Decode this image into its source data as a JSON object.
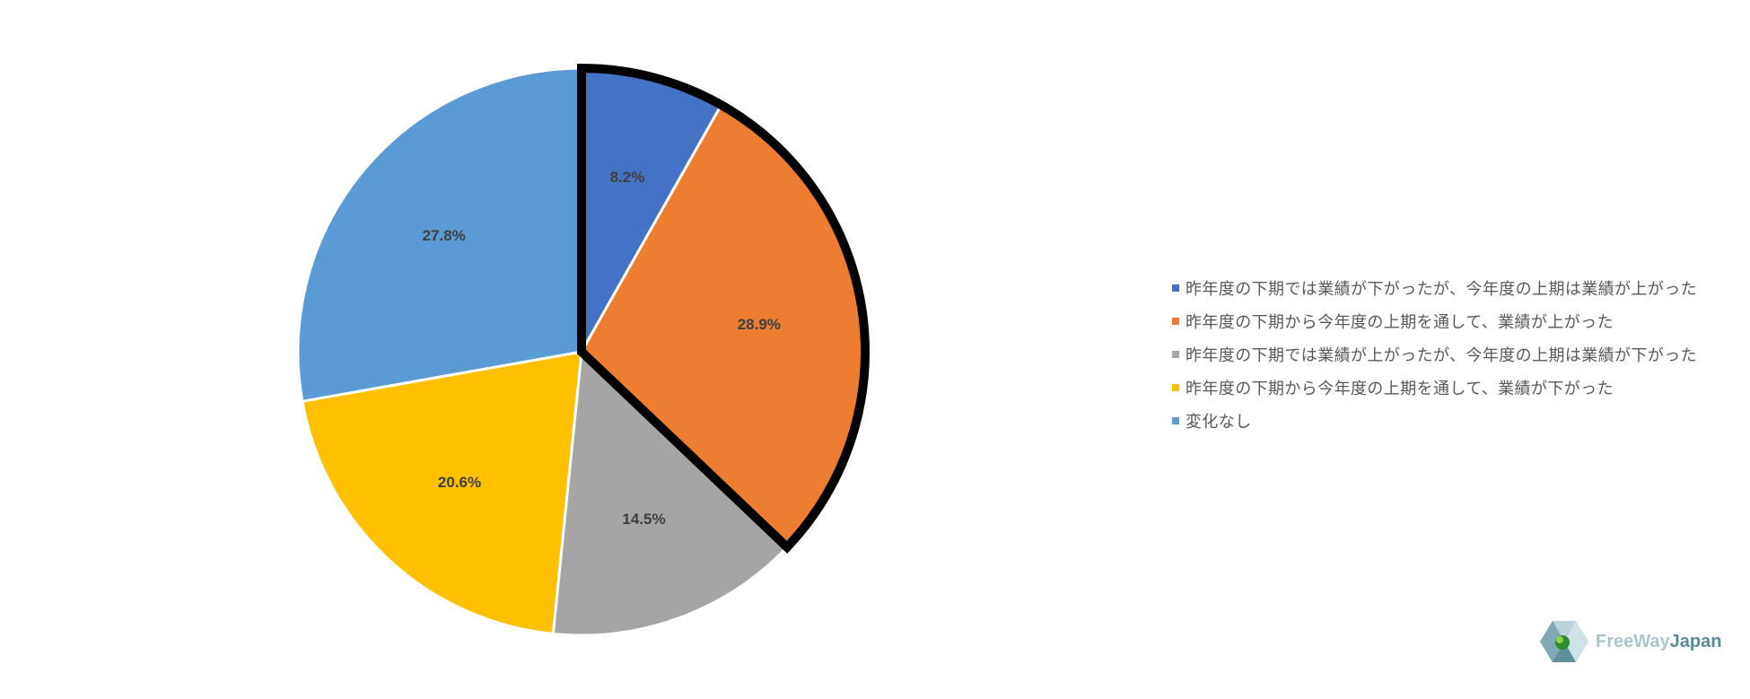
{
  "chart_data": {
    "type": "pie",
    "title": "",
    "categories": [
      "昨年度の下期では業績が下がったが、今年度の上期は業績が上がった",
      "昨年度の下期から今年度の上期を通して、業績が上がった",
      "昨年度の下期では業績が上がったが、今年度の上期は業績が下がった",
      "昨年度の下期から今年度の上期を通して、業績が下がった",
      "変化なし"
    ],
    "values": [
      8.2,
      28.9,
      14.5,
      20.6,
      27.8
    ],
    "labels": [
      "8.2%",
      "28.9%",
      "14.5%",
      "20.6%",
      "27.8%"
    ],
    "colors": [
      "#4472c4",
      "#ed7d31",
      "#a5a5a5",
      "#ffc000",
      "#5b9bd5"
    ],
    "highlighted": [
      0,
      1
    ],
    "highlight_color": "#000000",
    "start_angle_deg": 0,
    "direction": "clockwise",
    "legend_position": "right"
  },
  "logo": {
    "free": "FreeWay",
    "japan": "Japan",
    "icon": "freewayjapan-logo-icon"
  }
}
